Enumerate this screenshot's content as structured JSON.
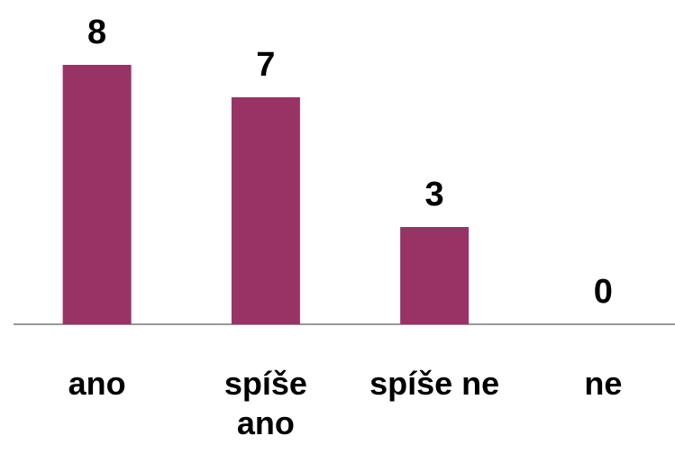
{
  "chart_data": {
    "type": "bar",
    "categories": [
      "ano",
      "spíše ano",
      "spíše ne",
      "ne"
    ],
    "values": [
      8,
      7,
      3,
      0
    ],
    "color": "#993366",
    "ylim": [
      0,
      8
    ]
  }
}
